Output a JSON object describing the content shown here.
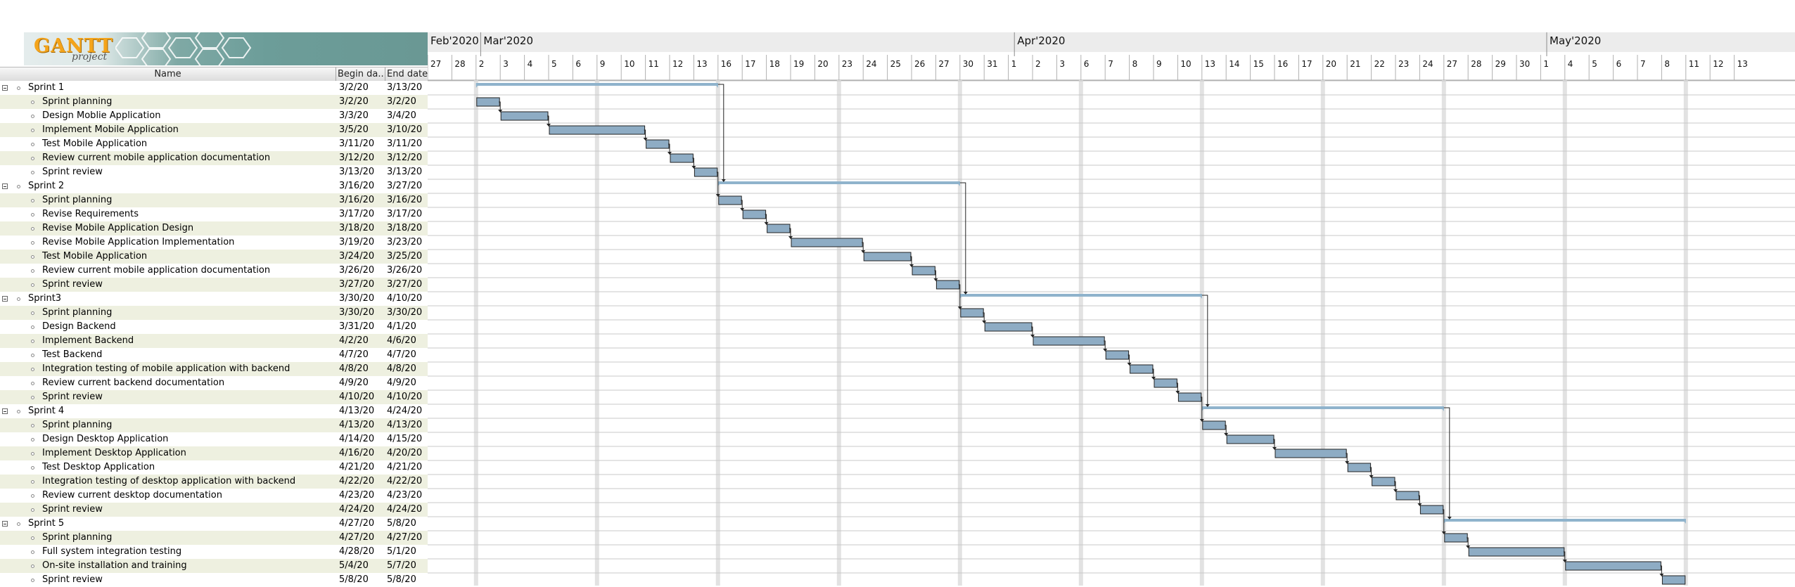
{
  "app": {
    "logo_text": "GANTT",
    "logo_subtext": "project"
  },
  "table": {
    "headers": {
      "name": "Name",
      "begin": "Begin da...",
      "end": "End date"
    }
  },
  "timeline": {
    "months": [
      {
        "label": "Feb'2020",
        "date": "2020-02-27"
      },
      {
        "label": "Mar'2020",
        "date": "2020-03-01"
      },
      {
        "label": "Apr'2020",
        "date": "2020-04-01"
      },
      {
        "label": "May'2020",
        "date": "2020-05-01"
      }
    ],
    "days": [
      {
        "label": "27",
        "date": "2020-02-27"
      },
      {
        "label": "28",
        "date": "2020-02-28"
      },
      {
        "label": "2",
        "date": "2020-03-02"
      },
      {
        "label": "3",
        "date": "2020-03-03"
      },
      {
        "label": "4",
        "date": "2020-03-04"
      },
      {
        "label": "5",
        "date": "2020-03-05"
      },
      {
        "label": "6",
        "date": "2020-03-06"
      },
      {
        "label": "9",
        "date": "2020-03-09"
      },
      {
        "label": "10",
        "date": "2020-03-10"
      },
      {
        "label": "11",
        "date": "2020-03-11"
      },
      {
        "label": "12",
        "date": "2020-03-12"
      },
      {
        "label": "13",
        "date": "2020-03-13"
      },
      {
        "label": "16",
        "date": "2020-03-16"
      },
      {
        "label": "17",
        "date": "2020-03-17"
      },
      {
        "label": "18",
        "date": "2020-03-18"
      },
      {
        "label": "19",
        "date": "2020-03-19"
      },
      {
        "label": "20",
        "date": "2020-03-20"
      },
      {
        "label": "23",
        "date": "2020-03-23"
      },
      {
        "label": "24",
        "date": "2020-03-24"
      },
      {
        "label": "25",
        "date": "2020-03-25"
      },
      {
        "label": "26",
        "date": "2020-03-26"
      },
      {
        "label": "27",
        "date": "2020-03-27"
      },
      {
        "label": "30",
        "date": "2020-03-30"
      },
      {
        "label": "31",
        "date": "2020-03-31"
      },
      {
        "label": "1",
        "date": "2020-04-01"
      },
      {
        "label": "2",
        "date": "2020-04-02"
      },
      {
        "label": "3",
        "date": "2020-04-03"
      },
      {
        "label": "6",
        "date": "2020-04-06"
      },
      {
        "label": "7",
        "date": "2020-04-07"
      },
      {
        "label": "8",
        "date": "2020-04-08"
      },
      {
        "label": "9",
        "date": "2020-04-09"
      },
      {
        "label": "10",
        "date": "2020-04-10"
      },
      {
        "label": "13",
        "date": "2020-04-13"
      },
      {
        "label": "14",
        "date": "2020-04-14"
      },
      {
        "label": "15",
        "date": "2020-04-15"
      },
      {
        "label": "16",
        "date": "2020-04-16"
      },
      {
        "label": "17",
        "date": "2020-04-17"
      },
      {
        "label": "20",
        "date": "2020-04-20"
      },
      {
        "label": "21",
        "date": "2020-04-21"
      },
      {
        "label": "22",
        "date": "2020-04-22"
      },
      {
        "label": "23",
        "date": "2020-04-23"
      },
      {
        "label": "24",
        "date": "2020-04-24"
      },
      {
        "label": "27",
        "date": "2020-04-27"
      },
      {
        "label": "28",
        "date": "2020-04-28"
      },
      {
        "label": "29",
        "date": "2020-04-29"
      },
      {
        "label": "30",
        "date": "2020-04-30"
      },
      {
        "label": "1",
        "date": "2020-05-01"
      },
      {
        "label": "4",
        "date": "2020-05-04"
      },
      {
        "label": "5",
        "date": "2020-05-05"
      },
      {
        "label": "6",
        "date": "2020-05-06"
      },
      {
        "label": "7",
        "date": "2020-05-07"
      },
      {
        "label": "8",
        "date": "2020-05-08"
      },
      {
        "label": "11",
        "date": "2020-05-11"
      },
      {
        "label": "12",
        "date": "2020-05-12"
      },
      {
        "label": "13",
        "date": "2020-05-13"
      }
    ]
  },
  "colors": {
    "task_bar": "#8eacc4",
    "summary_bar": "#8fb3cc",
    "alt_row": "#eef0e0",
    "grid_line": "#c8c8c8",
    "weekend_line": "#e2e2e2",
    "header_band": "#ececec"
  },
  "tasks": [
    {
      "name": "Sprint 1",
      "begin": "3/2/20",
      "end": "3/13/20",
      "start": "2020-03-02",
      "finish": "2020-03-13",
      "summary": true
    },
    {
      "name": "Sprint planning",
      "begin": "3/2/20",
      "end": "3/2/20",
      "start": "2020-03-02",
      "finish": "2020-03-02"
    },
    {
      "name": "Design Moblie Application",
      "begin": "3/3/20",
      "end": "3/4/20",
      "start": "2020-03-03",
      "finish": "2020-03-04"
    },
    {
      "name": "Implement Mobile Application",
      "begin": "3/5/20",
      "end": "3/10/20",
      "start": "2020-03-05",
      "finish": "2020-03-10"
    },
    {
      "name": "Test Mobile Application",
      "begin": "3/11/20",
      "end": "3/11/20",
      "start": "2020-03-11",
      "finish": "2020-03-11"
    },
    {
      "name": "Review current mobile application documentation",
      "begin": "3/12/20",
      "end": "3/12/20",
      "start": "2020-03-12",
      "finish": "2020-03-12"
    },
    {
      "name": "Sprint review",
      "begin": "3/13/20",
      "end": "3/13/20",
      "start": "2020-03-13",
      "finish": "2020-03-13"
    },
    {
      "name": "Sprint 2",
      "begin": "3/16/20",
      "end": "3/27/20",
      "start": "2020-03-16",
      "finish": "2020-03-27",
      "summary": true
    },
    {
      "name": "Sprint planning",
      "begin": "3/16/20",
      "end": "3/16/20",
      "start": "2020-03-16",
      "finish": "2020-03-16"
    },
    {
      "name": "Revise Requirements",
      "begin": "3/17/20",
      "end": "3/17/20",
      "start": "2020-03-17",
      "finish": "2020-03-17"
    },
    {
      "name": "Revise Mobile Application Design",
      "begin": "3/18/20",
      "end": "3/18/20",
      "start": "2020-03-18",
      "finish": "2020-03-18"
    },
    {
      "name": "Revise Mobile Application Implementation",
      "begin": "3/19/20",
      "end": "3/23/20",
      "start": "2020-03-19",
      "finish": "2020-03-23"
    },
    {
      "name": "Test Mobile Application",
      "begin": "3/24/20",
      "end": "3/25/20",
      "start": "2020-03-24",
      "finish": "2020-03-25"
    },
    {
      "name": "Review current mobile application documentation",
      "begin": "3/26/20",
      "end": "3/26/20",
      "start": "2020-03-26",
      "finish": "2020-03-26"
    },
    {
      "name": "Sprint review",
      "begin": "3/27/20",
      "end": "3/27/20",
      "start": "2020-03-27",
      "finish": "2020-03-27"
    },
    {
      "name": "Sprint3",
      "begin": "3/30/20",
      "end": "4/10/20",
      "start": "2020-03-30",
      "finish": "2020-04-10",
      "summary": true
    },
    {
      "name": "Sprint planning",
      "begin": "3/30/20",
      "end": "3/30/20",
      "start": "2020-03-30",
      "finish": "2020-03-30"
    },
    {
      "name": "Design Backend",
      "begin": "3/31/20",
      "end": "4/1/20",
      "start": "2020-03-31",
      "finish": "2020-04-01"
    },
    {
      "name": "Implement Backend",
      "begin": "4/2/20",
      "end": "4/6/20",
      "start": "2020-04-02",
      "finish": "2020-04-06"
    },
    {
      "name": "Test Backend",
      "begin": "4/7/20",
      "end": "4/7/20",
      "start": "2020-04-07",
      "finish": "2020-04-07"
    },
    {
      "name": "Integration testing of mobile application with backend",
      "begin": "4/8/20",
      "end": "4/8/20",
      "start": "2020-04-08",
      "finish": "2020-04-08"
    },
    {
      "name": "Review current backend documentation",
      "begin": "4/9/20",
      "end": "4/9/20",
      "start": "2020-04-09",
      "finish": "2020-04-09"
    },
    {
      "name": "Sprint review",
      "begin": "4/10/20",
      "end": "4/10/20",
      "start": "2020-04-10",
      "finish": "2020-04-10"
    },
    {
      "name": "Sprint 4",
      "begin": "4/13/20",
      "end": "4/24/20",
      "start": "2020-04-13",
      "finish": "2020-04-24",
      "summary": true
    },
    {
      "name": "Sprint planning",
      "begin": "4/13/20",
      "end": "4/13/20",
      "start": "2020-04-13",
      "finish": "2020-04-13"
    },
    {
      "name": "Design Desktop Application",
      "begin": "4/14/20",
      "end": "4/15/20",
      "start": "2020-04-14",
      "finish": "2020-04-15"
    },
    {
      "name": "Implement Desktop Application",
      "begin": "4/16/20",
      "end": "4/20/20",
      "start": "2020-04-16",
      "finish": "2020-04-20"
    },
    {
      "name": "Test Desktop Application",
      "begin": "4/21/20",
      "end": "4/21/20",
      "start": "2020-04-21",
      "finish": "2020-04-21"
    },
    {
      "name": "Integration testing of desktop application with backend",
      "begin": "4/22/20",
      "end": "4/22/20",
      "start": "2020-04-22",
      "finish": "2020-04-22"
    },
    {
      "name": "Review current desktop documentation",
      "begin": "4/23/20",
      "end": "4/23/20",
      "start": "2020-04-23",
      "finish": "2020-04-23"
    },
    {
      "name": "Sprint review",
      "begin": "4/24/20",
      "end": "4/24/20",
      "start": "2020-04-24",
      "finish": "2020-04-24"
    },
    {
      "name": "Sprint 5",
      "begin": "4/27/20",
      "end": "5/8/20",
      "start": "2020-04-27",
      "finish": "2020-05-08",
      "summary": true
    },
    {
      "name": "Sprint planning",
      "begin": "4/27/20",
      "end": "4/27/20",
      "start": "2020-04-27",
      "finish": "2020-04-27"
    },
    {
      "name": "Full system integration testing",
      "begin": "4/28/20",
      "end": "5/1/20",
      "start": "2020-04-28",
      "finish": "2020-05-01"
    },
    {
      "name": "On-site installation and training",
      "begin": "5/4/20",
      "end": "5/7/20",
      "start": "2020-05-04",
      "finish": "2020-05-07"
    },
    {
      "name": "Sprint review",
      "begin": "5/8/20",
      "end": "5/8/20",
      "start": "2020-05-08",
      "finish": "2020-05-08"
    }
  ]
}
